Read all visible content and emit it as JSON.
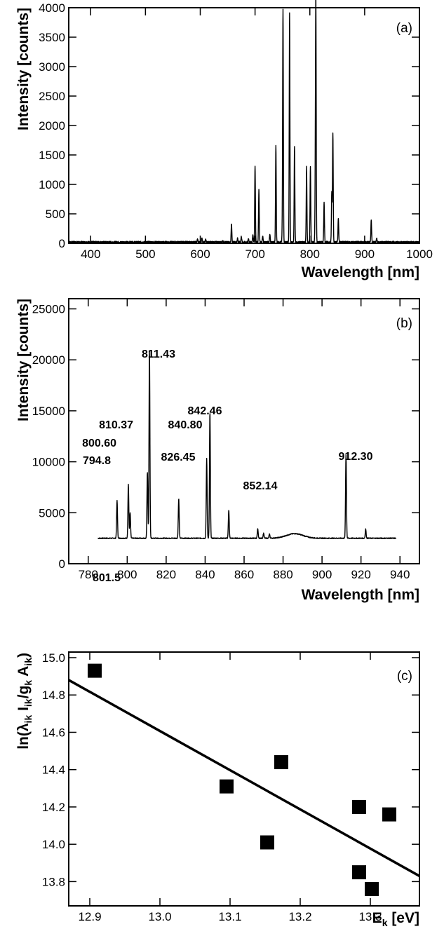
{
  "chart_data": [
    {
      "type": "line",
      "panel_tag": "(a)",
      "xlabel": "Wavelength [nm]",
      "ylabel": "Intensity [counts]",
      "xlim": [
        360,
        1000
      ],
      "ylim": [
        0,
        4000
      ],
      "x_ticks": [
        400,
        500,
        600,
        700,
        800,
        900,
        1000
      ],
      "y_ticks": [
        0,
        500,
        1000,
        1500,
        2000,
        2500,
        3000,
        3500,
        4000
      ],
      "baseline": 20,
      "peaks": [
        [
          595,
          70
        ],
        [
          603,
          100
        ],
        [
          610,
          60
        ],
        [
          641,
          40
        ],
        [
          657,
          330
        ],
        [
          668,
          90
        ],
        [
          675,
          120
        ],
        [
          688,
          80
        ],
        [
          696,
          140
        ],
        [
          700,
          1320
        ],
        [
          707,
          900
        ],
        [
          714,
          120
        ],
        [
          727,
          160
        ],
        [
          738,
          1650
        ],
        [
          750,
          330
        ],
        [
          751,
          3880
        ],
        [
          763,
          3900
        ],
        [
          772,
          1650
        ],
        [
          794,
          1300
        ],
        [
          801,
          1310
        ],
        [
          810,
          1100
        ],
        [
          811,
          3880
        ],
        [
          826,
          700
        ],
        [
          840,
          870
        ],
        [
          842,
          1880
        ],
        [
          852,
          430
        ],
        [
          912,
          400
        ],
        [
          922,
          80
        ]
      ]
    },
    {
      "type": "line",
      "panel_tag": "(b)",
      "xlabel": "Wavelength [nm]",
      "ylabel": "Intensity [counts]",
      "xlim": [
        770,
        950
      ],
      "ylim": [
        0,
        26000
      ],
      "x_range": [
        785,
        938
      ],
      "x_ticks": [
        780,
        800,
        820,
        840,
        860,
        880,
        900,
        920,
        940
      ],
      "y_ticks": [
        0,
        5000,
        10000,
        15000,
        20000,
        25000
      ],
      "baseline": 2500,
      "peaks": [
        [
          794.8,
          6200
        ],
        [
          800.6,
          7800
        ],
        [
          801.5,
          5000
        ],
        [
          810.37,
          9000
        ],
        [
          811.43,
          21100
        ],
        [
          826.45,
          6400
        ],
        [
          840.8,
          10300
        ],
        [
          842.46,
          14900
        ],
        [
          852.14,
          5300
        ],
        [
          867,
          3400
        ],
        [
          870,
          3000
        ],
        [
          873,
          2900
        ],
        [
          912.3,
          10700
        ],
        [
          922.4,
          3400
        ]
      ],
      "bumps": [
        [
          886,
          2950,
          6
        ]
      ],
      "annotations": [
        "794.8",
        "800.60",
        "801.5",
        "810.37",
        "811.43",
        "826.45",
        "840.80",
        "842.46",
        "852.14",
        "912.30"
      ]
    },
    {
      "type": "scatter",
      "panel_tag": "(c)",
      "xlabel": "E",
      "xlabel_sub": "k",
      "xlabel_unit": " [eV]",
      "ylabel": "ln(λik Iik/gk Aik)",
      "xlim": [
        12.87,
        13.37
      ],
      "ylim": [
        13.67,
        15.03
      ],
      "x_ticks": [
        "12.9",
        "13.0",
        "13.1",
        "13.2",
        "13.3"
      ],
      "y_ticks": [
        "13.8",
        "14.0",
        "14.2",
        "14.4",
        "14.6",
        "14.8",
        "15.0"
      ],
      "points": [
        [
          12.907,
          14.93
        ],
        [
          13.095,
          14.31
        ],
        [
          13.153,
          14.01
        ],
        [
          13.173,
          14.44
        ],
        [
          13.284,
          14.2
        ],
        [
          13.284,
          13.85
        ],
        [
          13.302,
          13.76
        ],
        [
          13.327,
          14.16
        ]
      ],
      "fit": [
        [
          12.87,
          14.88
        ],
        [
          13.37,
          13.83
        ]
      ]
    }
  ]
}
